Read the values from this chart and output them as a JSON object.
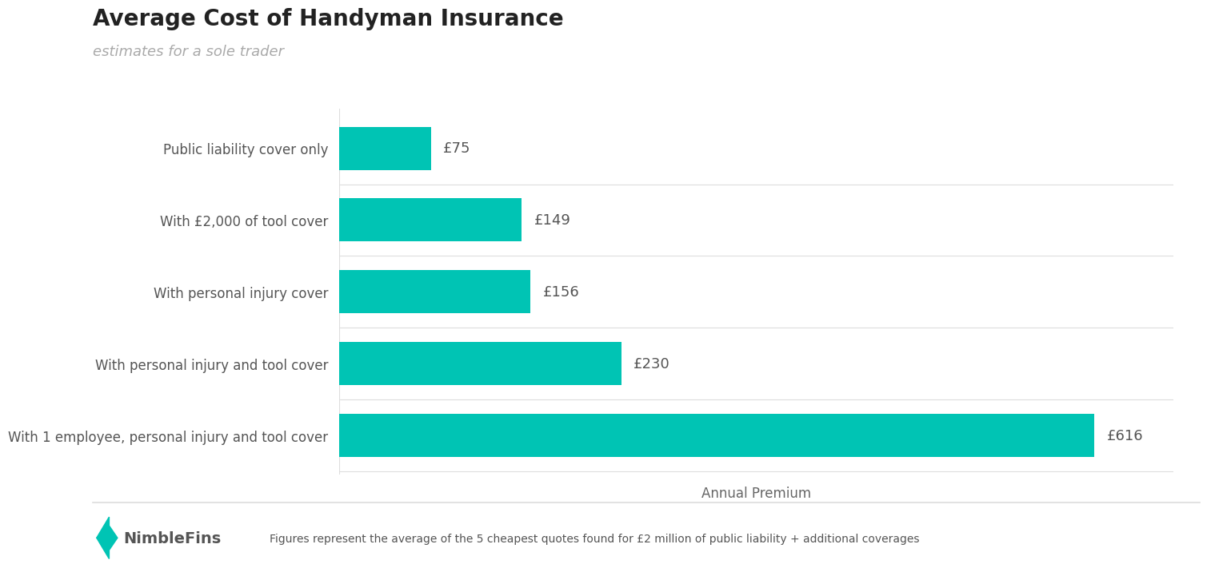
{
  "title": "Average Cost of Handyman Insurance",
  "subtitle": "estimates for a sole trader",
  "categories": [
    "With 1 employee, personal injury and tool cover",
    "With personal injury and tool cover",
    "With personal injury cover",
    "With £2,000 of tool cover",
    "Public liability cover only"
  ],
  "values": [
    616,
    230,
    156,
    149,
    75
  ],
  "bar_color": "#00C4B4",
  "label_color": "#555555",
  "title_color": "#222222",
  "subtitle_color": "#aaaaaa",
  "xlabel": "Annual Premium",
  "xlabel_color": "#666666",
  "value_labels": [
    "£616",
    "£230",
    "£156",
    "£149",
    "£75"
  ],
  "xlim": [
    0,
    680
  ],
  "background_color": "#ffffff",
  "footer_text": "Figures represent the average of the 5 cheapest quotes found for £2 million of public liability + additional coverages",
  "footer_logo_text": "NimbleFins",
  "title_fontsize": 20,
  "subtitle_fontsize": 13,
  "category_fontsize": 12,
  "value_fontsize": 13,
  "xlabel_fontsize": 12,
  "divider_color": "#dddddd",
  "bar_height": 0.6
}
